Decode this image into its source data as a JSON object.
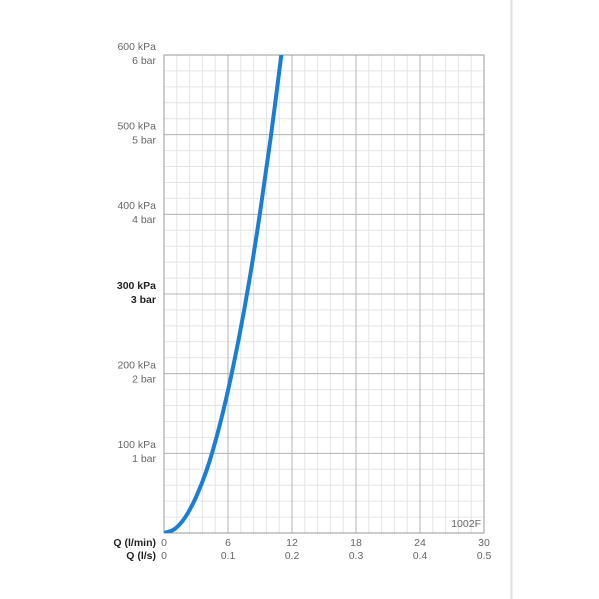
{
  "chart_data": {
    "type": "line",
    "x": [
      0,
      1,
      2,
      3,
      4,
      5,
      6,
      7,
      8,
      9,
      10,
      11
    ],
    "series": [
      {
        "name": "1002F",
        "color": "#1a7fd4",
        "values": [
          0,
          5,
          20,
          45,
          79,
          124,
          179,
          243,
          317,
          402,
          496,
          600
        ]
      }
    ],
    "xlim": [
      0,
      30
    ],
    "ylim": [
      0,
      600
    ],
    "xticks": [
      0,
      6,
      12,
      18,
      24,
      30
    ],
    "x2ticks": [
      0,
      0.1,
      0.2,
      0.3,
      0.4,
      0.5
    ],
    "yticks": [
      {
        "value": 100,
        "label": "100 kPa"
      },
      {
        "value": 200,
        "label": "200 kPa"
      },
      {
        "value": 300,
        "label": "300 kPa"
      },
      {
        "value": 400,
        "label": "400 kPa"
      },
      {
        "value": 500,
        "label": "500 kPa"
      },
      {
        "value": 600,
        "label": "600 kPa"
      }
    ],
    "ytick_sublabels": [
      "1 bar",
      "2 bar",
      "3 bar",
      "4 bar",
      "5 bar",
      "6 bar"
    ],
    "highlight_ytick": 300,
    "xlabel": "Q (l/min)",
    "x2label": "Q (l/s)",
    "annotation": "1002F",
    "grid": true,
    "minor_grid": {
      "x": 1.2,
      "y": 20
    }
  }
}
